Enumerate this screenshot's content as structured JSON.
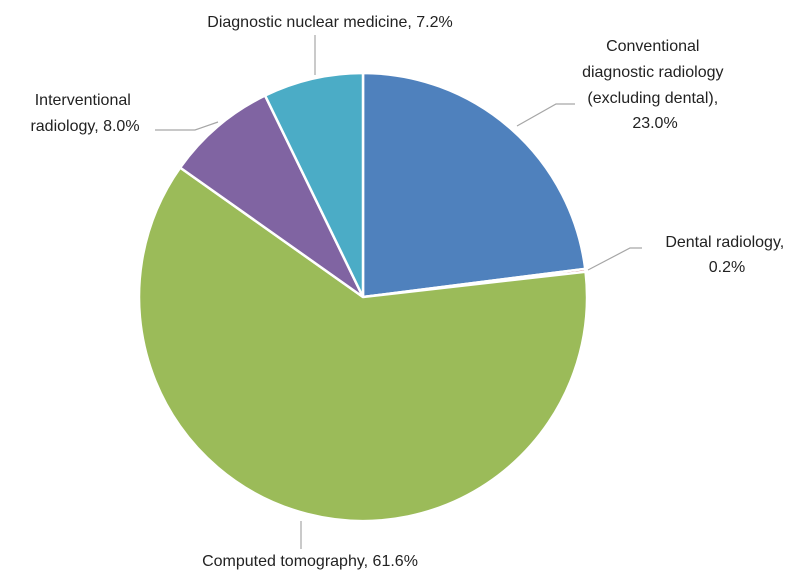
{
  "chart_data": {
    "type": "pie",
    "categories": [
      "Conventional diagnostic radiology (excluding dental)",
      "Dental radiology",
      "Computed tomography",
      "Interventional radiology",
      "Diagnostic nuclear medicine"
    ],
    "values": [
      23.0,
      0.2,
      61.6,
      8.0,
      7.2
    ],
    "value_labels": [
      "23.0%",
      "0.2%",
      "61.6%",
      "8.0%",
      "7.2%"
    ],
    "label_separator": ", ",
    "colors": [
      "#4f81bd",
      "#c0504d",
      "#9bbb59",
      "#8064a2",
      "#4bacc6"
    ]
  }
}
